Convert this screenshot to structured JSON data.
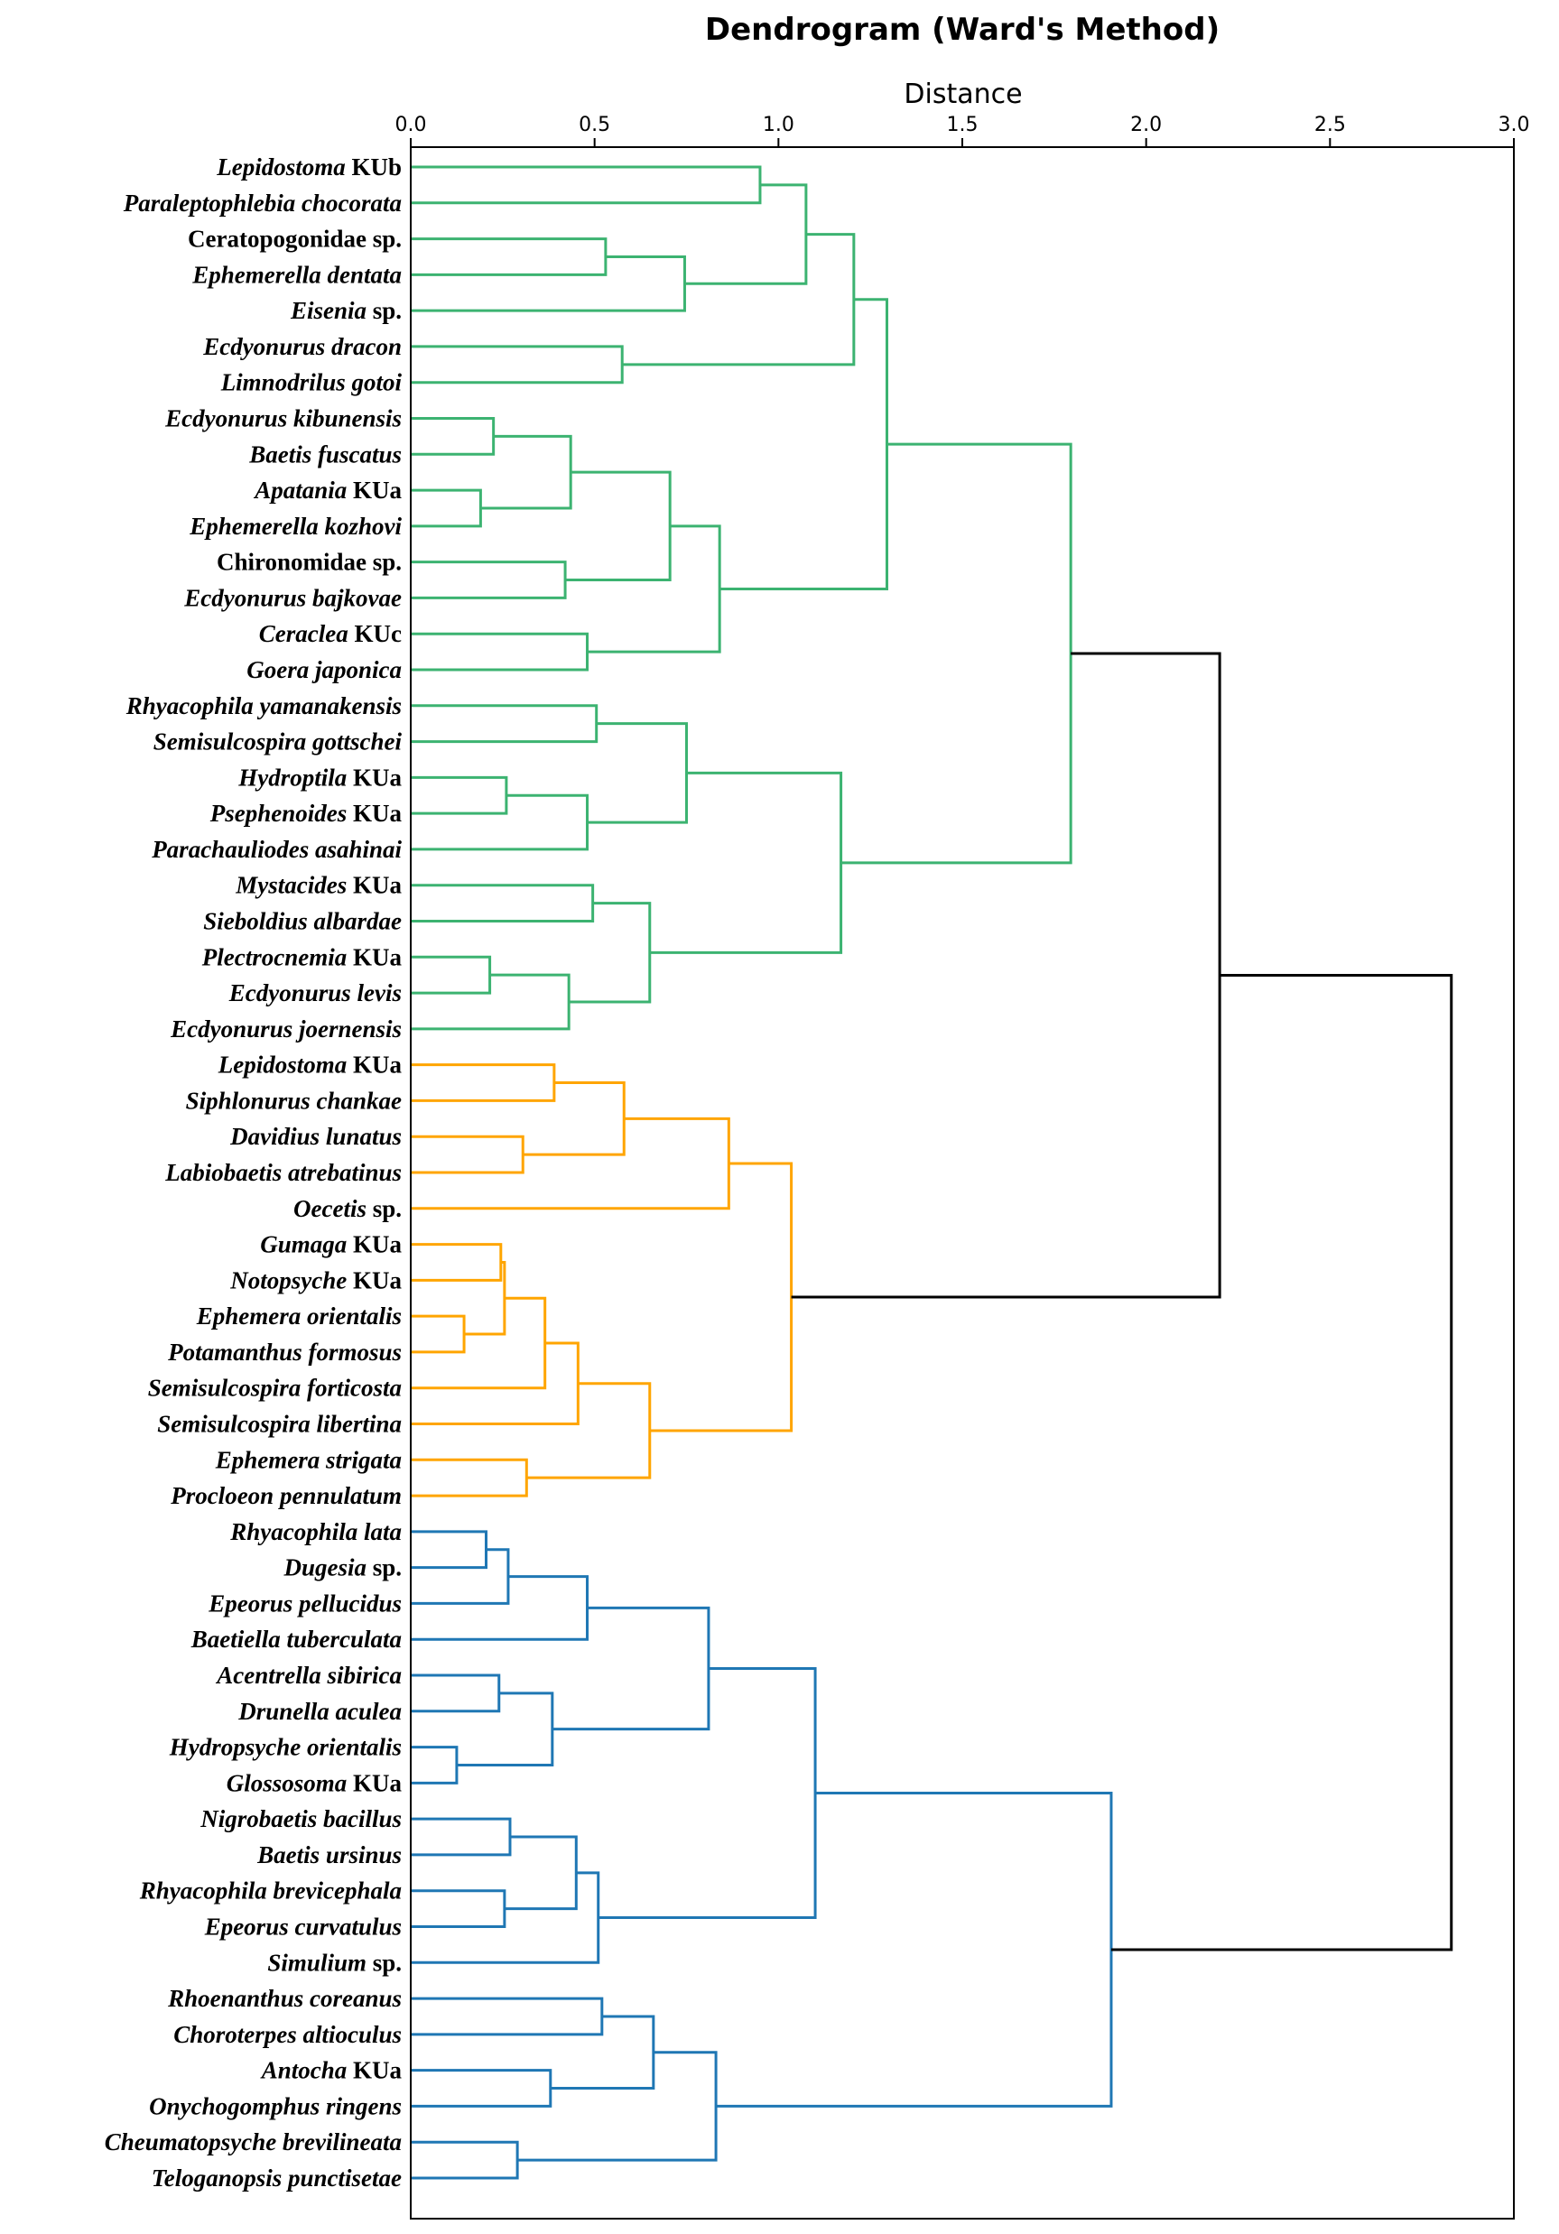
{
  "chart_data": {
    "type": "dendrogram",
    "title": "Dendrogram (Ward's Method)",
    "xlabel": "Distance",
    "ylabel": "",
    "orientation": "right-to-left merges, leaves on left",
    "xlim": [
      0.0,
      3.0
    ],
    "xticks": [
      "0.0",
      "0.5",
      "1.0",
      "1.5",
      "2.0",
      "2.5",
      "3.0"
    ],
    "xtick_values": [
      0.0,
      0.5,
      1.0,
      1.5,
      2.0,
      2.5,
      3.0
    ],
    "colors": {
      "cluster_green": "#3cb371",
      "cluster_orange": "#ffa500",
      "cluster_blue": "#1f77b4",
      "above_threshold": "#000000"
    },
    "leaves": [
      {
        "genus": "Lepidostoma",
        "rest": " KUb",
        "italic_rest": false
      },
      {
        "genus": "Paraleptophlebia chocorata",
        "rest": "",
        "italic_rest": false
      },
      {
        "genus": "",
        "rest": "Ceratopogonidae sp.",
        "italic_rest": false
      },
      {
        "genus": "Ephemerella dentata",
        "rest": "",
        "italic_rest": false
      },
      {
        "genus": "Eisenia",
        "rest": " sp.",
        "italic_rest": false
      },
      {
        "genus": "Ecdyonurus dracon",
        "rest": "",
        "italic_rest": false
      },
      {
        "genus": "Limnodrilus gotoi",
        "rest": "",
        "italic_rest": false
      },
      {
        "genus": "Ecdyonurus kibunensis",
        "rest": "",
        "italic_rest": false
      },
      {
        "genus": "Baetis fuscatus",
        "rest": "",
        "italic_rest": false
      },
      {
        "genus": "Apatania",
        "rest": " KUa",
        "italic_rest": false
      },
      {
        "genus": "Ephemerella kozhovi",
        "rest": "",
        "italic_rest": false
      },
      {
        "genus": "",
        "rest": "Chironomidae sp.",
        "italic_rest": false
      },
      {
        "genus": "Ecdyonurus bajkovae",
        "rest": "",
        "italic_rest": false
      },
      {
        "genus": "Ceraclea",
        "rest": " KUc",
        "italic_rest": false
      },
      {
        "genus": "Goera japonica",
        "rest": "",
        "italic_rest": false
      },
      {
        "genus": "Rhyacophila yamanakensis",
        "rest": "",
        "italic_rest": false
      },
      {
        "genus": "Semisulcospira gottschei",
        "rest": "",
        "italic_rest": false
      },
      {
        "genus": "Hydroptila",
        "rest": " KUa",
        "italic_rest": false
      },
      {
        "genus": "Psephenoides",
        "rest": " KUa",
        "italic_rest": false
      },
      {
        "genus": "Parachauliodes asahinai",
        "rest": "",
        "italic_rest": false
      },
      {
        "genus": "Mystacides",
        "rest": " KUa",
        "italic_rest": false
      },
      {
        "genus": "Sieboldius albardae",
        "rest": "",
        "italic_rest": false
      },
      {
        "genus": "Plectrocnemia",
        "rest": " KUa",
        "italic_rest": false
      },
      {
        "genus": "Ecdyonurus levis",
        "rest": "",
        "italic_rest": false
      },
      {
        "genus": "Ecdyonurus joernensis",
        "rest": "",
        "italic_rest": false
      },
      {
        "genus": "Lepidostoma",
        "rest": " KUa",
        "italic_rest": false
      },
      {
        "genus": "Siphlonurus chankae",
        "rest": "",
        "italic_rest": false
      },
      {
        "genus": "Davidius lunatus",
        "rest": "",
        "italic_rest": false
      },
      {
        "genus": "Labiobaetis atrebatinus",
        "rest": "",
        "italic_rest": false
      },
      {
        "genus": "Oecetis",
        "rest": " sp.",
        "italic_rest": false
      },
      {
        "genus": "Gumaga",
        "rest": " KUa",
        "italic_rest": false
      },
      {
        "genus": "Notopsyche",
        "rest": " KUa",
        "italic_rest": false
      },
      {
        "genus": "Ephemera orientalis",
        "rest": "",
        "italic_rest": false
      },
      {
        "genus": "Potamanthus formosus",
        "rest": "",
        "italic_rest": false
      },
      {
        "genus": "Semisulcospira forticosta",
        "rest": "",
        "italic_rest": false
      },
      {
        "genus": "Semisulcospira libertina",
        "rest": "",
        "italic_rest": false
      },
      {
        "genus": "Ephemera strigata",
        "rest": "",
        "italic_rest": false
      },
      {
        "genus": "Procloeon pennulatum",
        "rest": "",
        "italic_rest": false
      },
      {
        "genus": "Rhyacophila lata",
        "rest": "",
        "italic_rest": false
      },
      {
        "genus": "Dugesia",
        "rest": " sp.",
        "italic_rest": false
      },
      {
        "genus": "Epeorus pellucidus",
        "rest": "",
        "italic_rest": false
      },
      {
        "genus": "Baetiella tuberculata",
        "rest": "",
        "italic_rest": false
      },
      {
        "genus": "Acentrella sibirica",
        "rest": "",
        "italic_rest": false
      },
      {
        "genus": "Drunella aculea",
        "rest": "",
        "italic_rest": false
      },
      {
        "genus": "Hydropsyche orientalis",
        "rest": "",
        "italic_rest": false
      },
      {
        "genus": "Glossosoma",
        "rest": " KUa",
        "italic_rest": false
      },
      {
        "genus": "Nigrobaetis bacillus",
        "rest": "",
        "italic_rest": false
      },
      {
        "genus": "Baetis ursinus",
        "rest": "",
        "italic_rest": false
      },
      {
        "genus": "Rhyacophila brevicephala",
        "rest": "",
        "italic_rest": false
      },
      {
        "genus": "Epeorus curvatulus",
        "rest": "",
        "italic_rest": false
      },
      {
        "genus": "Simulium",
        "rest": " sp.",
        "italic_rest": false
      },
      {
        "genus": "Rhoenanthus coreanus",
        "rest": "",
        "italic_rest": false
      },
      {
        "genus": "Choroterpes altioculus",
        "rest": "",
        "italic_rest": false
      },
      {
        "genus": "Antocha",
        "rest": " KUa",
        "italic_rest": false
      },
      {
        "genus": "Onychogomphus ringens",
        "rest": "",
        "italic_rest": false
      },
      {
        "genus": "Cheumatopsyche brevilineata",
        "rest": "",
        "italic_rest": false
      },
      {
        "genus": "Teloganopsis punctisetae",
        "rest": "",
        "italic_rest": false
      }
    ],
    "tree": {
      "d": 2.83,
      "c": "above_threshold",
      "ch": [
        {
          "d": 2.2,
          "c": "above_threshold",
          "ch": [
            {
              "d": 1.795,
              "c": "cluster_green",
              "ch": [
                {
                  "d": 1.295,
                  "c": "cluster_green",
                  "ch": [
                    {
                      "d": 1.205,
                      "c": "cluster_green",
                      "ch": [
                        {
                          "d": 1.075,
                          "c": "cluster_green",
                          "ch": [
                            {
                              "d": 0.95,
                              "c": "cluster_green",
                              "ch": [
                                0,
                                1
                              ]
                            },
                            {
                              "d": 0.745,
                              "c": "cluster_green",
                              "ch": [
                                {
                                  "d": 0.53,
                                  "c": "cluster_green",
                                  "ch": [
                                    2,
                                    3
                                  ]
                                },
                                4
                              ]
                            }
                          ]
                        },
                        {
                          "d": 0.575,
                          "c": "cluster_green",
                          "ch": [
                            5,
                            6
                          ]
                        }
                      ]
                    },
                    {
                      "d": 0.84,
                      "c": "cluster_green",
                      "ch": [
                        {
                          "d": 0.705,
                          "c": "cluster_green",
                          "ch": [
                            {
                              "d": 0.435,
                              "c": "cluster_green",
                              "ch": [
                                {
                                  "d": 0.225,
                                  "c": "cluster_green",
                                  "ch": [
                                    7,
                                    8
                                  ]
                                },
                                {
                                  "d": 0.19,
                                  "c": "cluster_green",
                                  "ch": [
                                    9,
                                    10
                                  ]
                                }
                              ]
                            },
                            {
                              "d": 0.42,
                              "c": "cluster_green",
                              "ch": [
                                11,
                                12
                              ]
                            }
                          ]
                        },
                        {
                          "d": 0.48,
                          "c": "cluster_green",
                          "ch": [
                            13,
                            14
                          ]
                        }
                      ]
                    }
                  ]
                },
                {
                  "d": 1.17,
                  "c": "cluster_green",
                  "ch": [
                    {
                      "d": 0.75,
                      "c": "cluster_green",
                      "ch": [
                        {
                          "d": 0.505,
                          "c": "cluster_green",
                          "ch": [
                            15,
                            16
                          ]
                        },
                        {
                          "d": 0.48,
                          "c": "cluster_green",
                          "ch": [
                            {
                              "d": 0.26,
                              "c": "cluster_green",
                              "ch": [
                                17,
                                18
                              ]
                            },
                            19
                          ]
                        }
                      ]
                    },
                    {
                      "d": 0.65,
                      "c": "cluster_green",
                      "ch": [
                        {
                          "d": 0.495,
                          "c": "cluster_green",
                          "ch": [
                            20,
                            21
                          ]
                        },
                        {
                          "d": 0.43,
                          "c": "cluster_green",
                          "ch": [
                            {
                              "d": 0.215,
                              "c": "cluster_green",
                              "ch": [
                                22,
                                23
                              ]
                            },
                            24
                          ]
                        }
                      ]
                    }
                  ]
                }
              ]
            },
            {
              "d": 1.035,
              "c": "cluster_orange",
              "ch": [
                {
                  "d": 0.865,
                  "c": "cluster_orange",
                  "ch": [
                    {
                      "d": 0.58,
                      "c": "cluster_orange",
                      "ch": [
                        {
                          "d": 0.39,
                          "c": "cluster_orange",
                          "ch": [
                            25,
                            26
                          ]
                        },
                        {
                          "d": 0.305,
                          "c": "cluster_orange",
                          "ch": [
                            27,
                            28
                          ]
                        }
                      ]
                    },
                    29
                  ]
                },
                {
                  "d": 0.65,
                  "c": "cluster_orange",
                  "ch": [
                    {
                      "d": 0.455,
                      "c": "cluster_orange",
                      "ch": [
                        {
                          "d": 0.365,
                          "c": "cluster_orange",
                          "ch": [
                            {
                              "d": 0.255,
                              "c": "cluster_orange",
                              "ch": [
                                {
                                  "d": 0.245,
                                  "c": "cluster_orange",
                                  "ch": [
                                    30,
                                    31
                                  ]
                                },
                                {
                                  "d": 0.145,
                                  "c": "cluster_orange",
                                  "ch": [
                                    32,
                                    33
                                  ]
                                }
                              ]
                            },
                            34
                          ]
                        },
                        35
                      ]
                    },
                    {
                      "d": 0.315,
                      "c": "cluster_orange",
                      "ch": [
                        36,
                        37
                      ]
                    }
                  ]
                }
              ]
            }
          ]
        },
        {
          "d": 1.905,
          "c": "cluster_blue",
          "ch": [
            {
              "d": 1.1,
              "c": "cluster_blue",
              "ch": [
                {
                  "d": 0.81,
                  "c": "cluster_blue",
                  "ch": [
                    {
                      "d": 0.48,
                      "c": "cluster_blue",
                      "ch": [
                        {
                          "d": 0.265,
                          "c": "cluster_blue",
                          "ch": [
                            {
                              "d": 0.205,
                              "c": "cluster_blue",
                              "ch": [
                                38,
                                39
                              ]
                            },
                            40
                          ]
                        },
                        41
                      ]
                    },
                    {
                      "d": 0.385,
                      "c": "cluster_blue",
                      "ch": [
                        {
                          "d": 0.24,
                          "c": "cluster_blue",
                          "ch": [
                            42,
                            43
                          ]
                        },
                        {
                          "d": 0.125,
                          "c": "cluster_blue",
                          "ch": [
                            44,
                            45
                          ]
                        }
                      ]
                    }
                  ]
                },
                {
                  "d": 0.51,
                  "c": "cluster_blue",
                  "ch": [
                    {
                      "d": 0.45,
                      "c": "cluster_blue",
                      "ch": [
                        {
                          "d": 0.27,
                          "c": "cluster_blue",
                          "ch": [
                            46,
                            47
                          ]
                        },
                        {
                          "d": 0.255,
                          "c": "cluster_blue",
                          "ch": [
                            48,
                            49
                          ]
                        }
                      ]
                    },
                    50
                  ]
                }
              ]
            },
            {
              "d": 0.83,
              "c": "cluster_blue",
              "ch": [
                {
                  "d": 0.66,
                  "c": "cluster_blue",
                  "ch": [
                    {
                      "d": 0.52,
                      "c": "cluster_blue",
                      "ch": [
                        51,
                        52
                      ]
                    },
                    {
                      "d": 0.38,
                      "c": "cluster_blue",
                      "ch": [
                        53,
                        54
                      ]
                    }
                  ]
                },
                {
                  "d": 0.29,
                  "c": "cluster_blue",
                  "ch": [
                    55,
                    56
                  ]
                }
              ]
            }
          ]
        }
      ]
    }
  }
}
